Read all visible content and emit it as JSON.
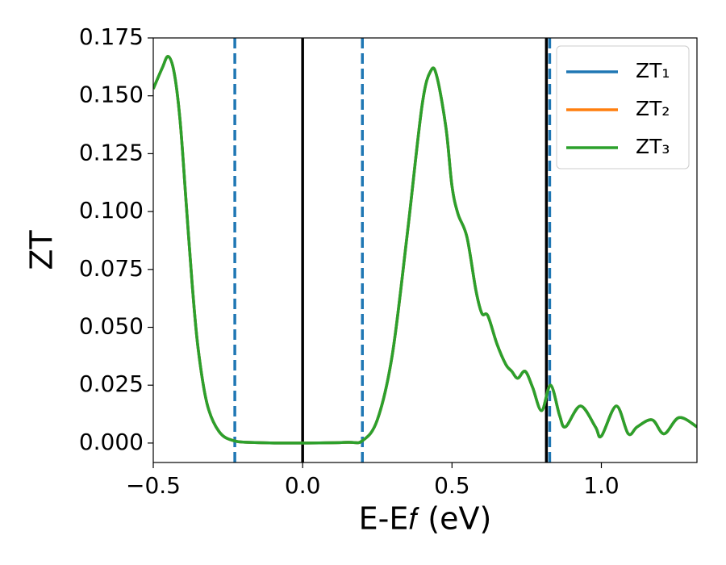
{
  "chart_data": {
    "type": "line",
    "xlabel": "E-E𝑓 (eV)",
    "ylabel": "ZT",
    "xlim": [
      -0.5,
      1.32
    ],
    "ylim": [
      -0.0084,
      0.175
    ],
    "xticks": [
      {
        "value": -0.5,
        "label": "−0.5"
      },
      {
        "value": 0,
        "label": "0.0"
      },
      {
        "value": 0.5,
        "label": "0.5"
      },
      {
        "value": 1,
        "label": "1.0"
      }
    ],
    "yticks": [
      {
        "value": 0,
        "label": "0.000"
      },
      {
        "value": 0.025,
        "label": "0.025"
      },
      {
        "value": 0.05,
        "label": "0.050"
      },
      {
        "value": 0.075,
        "label": "0.075"
      },
      {
        "value": 0.1,
        "label": "0.100"
      },
      {
        "value": 0.125,
        "label": "0.125"
      },
      {
        "value": 0.15,
        "label": "0.150"
      },
      {
        "value": 0.175,
        "label": "0.175"
      }
    ],
    "legend": "upper right",
    "vlines": [
      {
        "x": -0.227,
        "color": "#1f77b4",
        "style": "dashed"
      },
      {
        "x": 0,
        "color": "#000000",
        "style": "solid"
      },
      {
        "x": 0.2,
        "color": "#1f77b4",
        "style": "dashed"
      },
      {
        "x": 0.816,
        "color": "#000000",
        "style": "solid"
      },
      {
        "x": 0.827,
        "color": "#1f77b4",
        "style": "dashed"
      }
    ],
    "x": [
      -0.5,
      -0.47,
      -0.45,
      -0.43,
      -0.41,
      -0.39,
      -0.37,
      -0.35,
      -0.32,
      -0.28,
      -0.23,
      -0.15,
      0,
      0.15,
      0.2,
      0.25,
      0.3,
      0.35,
      0.4,
      0.43,
      0.45,
      0.48,
      0.5,
      0.52,
      0.55,
      0.58,
      0.6,
      0.62,
      0.65,
      0.68,
      0.7,
      0.72,
      0.745,
      0.77,
      0.8,
      0.83,
      0.86,
      0.88,
      0.93,
      0.98,
      1.0,
      1.05,
      1.09,
      1.12,
      1.17,
      1.21,
      1.26,
      1.32
    ],
    "series": [
      {
        "name": "ZT₁",
        "color": "#1f77b4",
        "values": [
          0.153,
          0.162,
          0.167,
          0.16,
          0.139,
          0.104,
          0.069,
          0.041,
          0.017,
          0.005,
          0.001,
          0.0002,
          0,
          0.0003,
          0.001,
          0.01,
          0.038,
          0.09,
          0.146,
          0.161,
          0.158,
          0.136,
          0.111,
          0.099,
          0.089,
          0.066,
          0.056,
          0.055,
          0.043,
          0.034,
          0.031,
          0.028,
          0.031,
          0.024,
          0.014,
          0.025,
          0.012,
          0.007,
          0.016,
          0.007,
          0.003,
          0.016,
          0.004,
          0.007,
          0.01,
          0.004,
          0.011,
          0.007
        ]
      },
      {
        "name": "ZT₂",
        "color": "#ff7f0e",
        "values": [
          0.153,
          0.162,
          0.167,
          0.16,
          0.139,
          0.104,
          0.069,
          0.041,
          0.017,
          0.005,
          0.001,
          0.0002,
          0,
          0.0003,
          0.001,
          0.01,
          0.038,
          0.09,
          0.146,
          0.161,
          0.158,
          0.136,
          0.111,
          0.099,
          0.089,
          0.066,
          0.056,
          0.055,
          0.043,
          0.034,
          0.031,
          0.028,
          0.031,
          0.024,
          0.014,
          0.025,
          0.012,
          0.007,
          0.016,
          0.007,
          0.003,
          0.016,
          0.004,
          0.007,
          0.01,
          0.004,
          0.011,
          0.007
        ]
      },
      {
        "name": "ZT₃",
        "color": "#2ca02c",
        "values": [
          0.153,
          0.162,
          0.167,
          0.16,
          0.139,
          0.104,
          0.069,
          0.041,
          0.017,
          0.005,
          0.001,
          0.0002,
          0,
          0.0003,
          0.001,
          0.01,
          0.038,
          0.09,
          0.146,
          0.161,
          0.158,
          0.136,
          0.111,
          0.099,
          0.089,
          0.066,
          0.056,
          0.055,
          0.043,
          0.034,
          0.031,
          0.028,
          0.031,
          0.024,
          0.014,
          0.025,
          0.012,
          0.007,
          0.016,
          0.007,
          0.003,
          0.016,
          0.004,
          0.007,
          0.01,
          0.004,
          0.011,
          0.007
        ]
      }
    ]
  }
}
